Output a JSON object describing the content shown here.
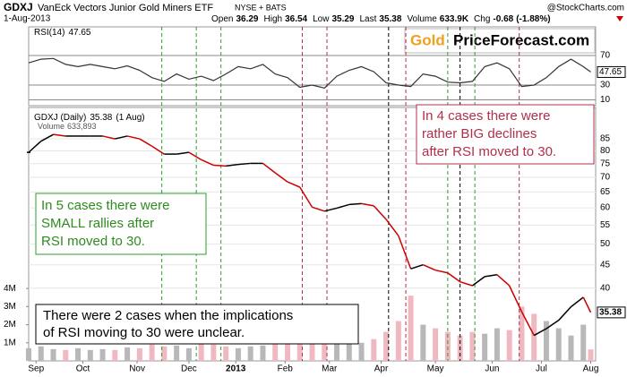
{
  "chart_data": {
    "type": "stock",
    "title": "GDXJ",
    "subtitle": "VanEck Vectors Junior Gold Miners ETF",
    "exchange": "NYSE + BATS",
    "date": "1-Aug-2013",
    "source": "@StockCharts.com",
    "quote": [
      {
        "label": "Open",
        "value": 36.29
      },
      {
        "label": "High",
        "value": 36.54
      },
      {
        "label": "Low",
        "value": 35.29
      },
      {
        "label": "Last",
        "value": 35.38
      },
      {
        "label": "Volume",
        "value": 633900,
        "value_label": "633.9K"
      },
      {
        "label": "Chg",
        "value": -0.68
      },
      {
        "value": -1.88,
        "value_label": "(-1.88%)"
      }
    ],
    "logo": {
      "gold": "Gold",
      "site": "PriceForecast.com"
    },
    "x": [
      0,
      5,
      10,
      15,
      20,
      25,
      30,
      35,
      40,
      45,
      50,
      55,
      60,
      65,
      70,
      75,
      80,
      85,
      90,
      95,
      100,
      105,
      110,
      115,
      120,
      125,
      130,
      135,
      140,
      145,
      150,
      155,
      160,
      165,
      170,
      175,
      180,
      185,
      190,
      195,
      200,
      205,
      210,
      215,
      220,
      225,
      228
    ],
    "xlim": [
      0,
      230
    ],
    "xticks": [
      {
        "value": 3,
        "label": "Sep"
      },
      {
        "value": 22,
        "label": "Oct"
      },
      {
        "value": 44,
        "label": "Nov"
      },
      {
        "value": 65,
        "label": "Dec"
      },
      {
        "value": 84,
        "label": "2013"
      },
      {
        "value": 104,
        "label": "Feb"
      },
      {
        "value": 122,
        "label": "Mar"
      },
      {
        "value": 143,
        "label": "Apr"
      },
      {
        "value": 165,
        "label": "May"
      },
      {
        "value": 188,
        "label": "Jun"
      },
      {
        "value": 208,
        "label": "Jul"
      },
      {
        "value": 228,
        "label": "Aug"
      }
    ],
    "rsi": {
      "name": "RSI(14)",
      "color": "#333333",
      "values": [
        60,
        65,
        66,
        58,
        55,
        58,
        55,
        52,
        56,
        50,
        40,
        35,
        45,
        38,
        42,
        36,
        45,
        55,
        52,
        58,
        45,
        40,
        27,
        30,
        26,
        42,
        50,
        55,
        48,
        33,
        30,
        28,
        45,
        42,
        34,
        33,
        35,
        55,
        60,
        52,
        28,
        30,
        40,
        55,
        65,
        55,
        47.65
      ],
      "ylim": [
        2.1,
        108.8
      ],
      "yticks": [
        10,
        30,
        70
      ]
    },
    "price": {
      "name": "GDXJ (Daily)",
      "date_label": "(1 Aug)",
      "up_color": "#000000",
      "down_color": "#cc0000",
      "values": [
        79.4,
        84,
        86.9,
        86.2,
        86.2,
        86.2,
        86.2,
        85,
        86.2,
        85,
        81.9,
        78.7,
        78.7,
        79.4,
        76.5,
        74.4,
        74.1,
        74.7,
        75.1,
        75.1,
        71.6,
        68.4,
        66.6,
        60.2,
        59,
        59.9,
        61,
        61.3,
        60.6,
        56.6,
        52.1,
        44.1,
        45,
        43.8,
        43.2,
        41.3,
        40.5,
        42.4,
        42.8,
        40.5,
        35.5,
        31.5,
        32.6,
        34,
        36.4,
        38.2,
        35.38
      ],
      "log_scale": true,
      "ylim": [
        27.7,
        99.6
      ],
      "yticks": [
        85,
        80,
        75,
        70,
        65,
        60,
        55,
        50,
        45,
        40
      ],
      "grid": true
    },
    "volume": {
      "name": "Volume",
      "last_label": "633,893",
      "up_color": "#b8b8b8",
      "down_color": "#f0b8c0",
      "values": [
        700000,
        800000,
        650000,
        600000,
        700000,
        600000,
        650000,
        600000,
        750000,
        700000,
        900000,
        800000,
        850000,
        700000,
        950000,
        900000,
        800000,
        700000,
        800000,
        850000,
        1000000,
        1100000,
        1200000,
        1400000,
        1500000,
        1200000,
        1100000,
        1000000,
        1200000,
        1600000,
        2200000,
        3600000,
        2000000,
        1800000,
        1600000,
        1400000,
        1600000,
        1500000,
        1800000,
        1700000,
        3000000,
        2600000,
        2200000,
        1800000,
        1400000,
        2000000,
        633893
      ],
      "ylim": [
        0,
        14000000
      ],
      "yticks": [
        {
          "value": 1000000,
          "label": "1M"
        },
        {
          "value": 2000000,
          "label": "2M"
        },
        {
          "value": 3000000,
          "label": "3M"
        },
        {
          "value": 4000000,
          "label": "4M"
        }
      ]
    },
    "vlines": [
      {
        "color": "#2e9e2e",
        "x": [
          54,
          68,
          78,
          170,
          181
        ]
      },
      {
        "color": "#b0304a",
        "x": [
          111,
          121,
          153,
          199
        ]
      },
      {
        "color": "#000000",
        "x": [
          146,
          175
        ]
      }
    ],
    "annotations": [
      {
        "lines": [
          "In 4 cases there were",
          "rather BIG declines",
          "after RSI moved to 30."
        ]
      },
      {
        "lines": [
          "In 5 cases there were",
          "SMALL rallies after",
          "RSI moved to 30."
        ]
      },
      {
        "lines": [
          "There were 2 cases when the implications",
          "of RSI moving to 30 were unclear."
        ]
      }
    ]
  }
}
